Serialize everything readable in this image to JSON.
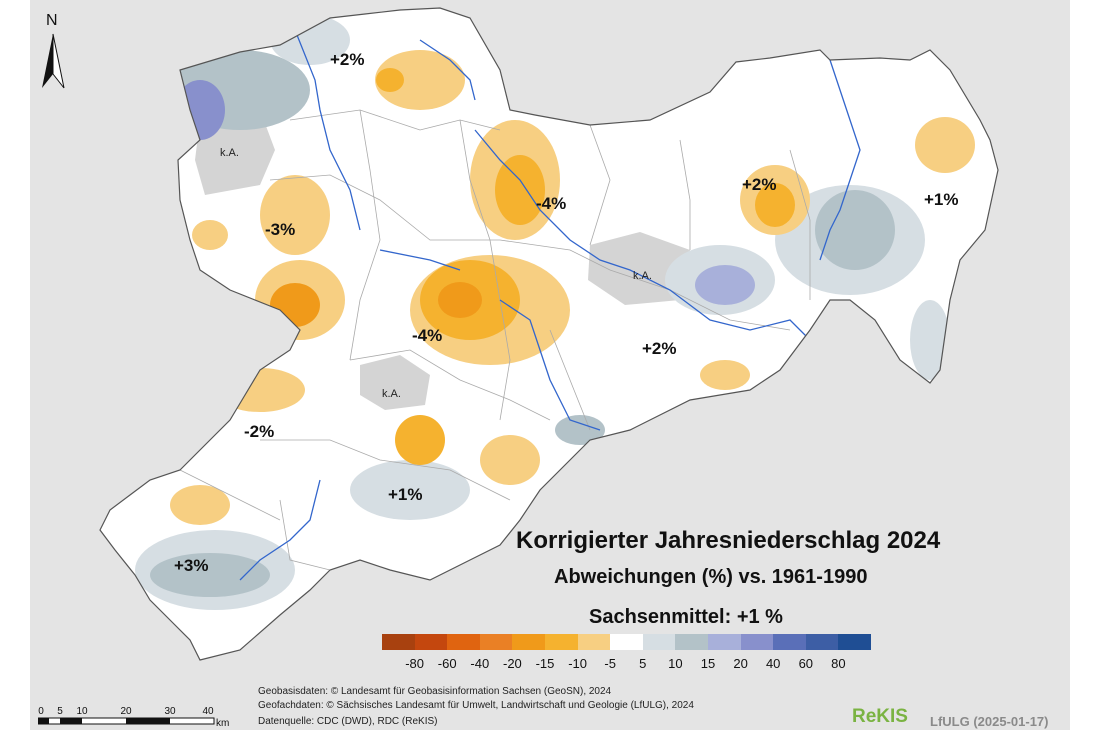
{
  "title": "Korrigierter Jahresniederschlag 2024",
  "subtitle": "Abweichungen (%) vs. 1961-1990",
  "state_mean": "Sachsenmittel: +1 %",
  "north_label": "N",
  "region_labels": {
    "nw_top": "+2%",
    "west": "-3%",
    "center_north": "-4%",
    "center": "-4%",
    "east_upper": "+2%",
    "east": "+1%",
    "center_east": "+2%",
    "southwest": "-2%",
    "south": "+1%",
    "vogtland": "+3%"
  },
  "no_data_label": "k.A.",
  "legend": {
    "ticks": [
      "-80",
      "-60",
      "-40",
      "-20",
      "-15",
      "-10",
      "-5",
      "5",
      "10",
      "15",
      "20",
      "40",
      "60",
      "80"
    ],
    "colors": [
      "#a8410f",
      "#c4470e",
      "#e06410",
      "#ea8025",
      "#f09a1a",
      "#f5b22f",
      "#f7cf82",
      "#ffffff",
      "#d6dee3",
      "#b3c2c8",
      "#a8b0da",
      "#8890cc",
      "#5a6fb8",
      "#3d5ea5",
      "#1f4e94"
    ]
  },
  "credits": [
    "Geobasisdaten: © Landesamt für Geobasisinformation Sachsen (GeoSN), 2024",
    "Geofachdaten: © Sächsisches Landesamt für Umwelt, Landwirtschaft und Geologie (LfULG), 2024",
    "Datenquelle: CDC (DWD), RDC (ReKIS)"
  ],
  "scale": {
    "ticks": [
      "0",
      "5",
      "10",
      "20",
      "30",
      "40"
    ],
    "unit": "km"
  },
  "brand": {
    "rekis": "ReKIS",
    "lfulg": "LfULG (2025-01-17)"
  }
}
